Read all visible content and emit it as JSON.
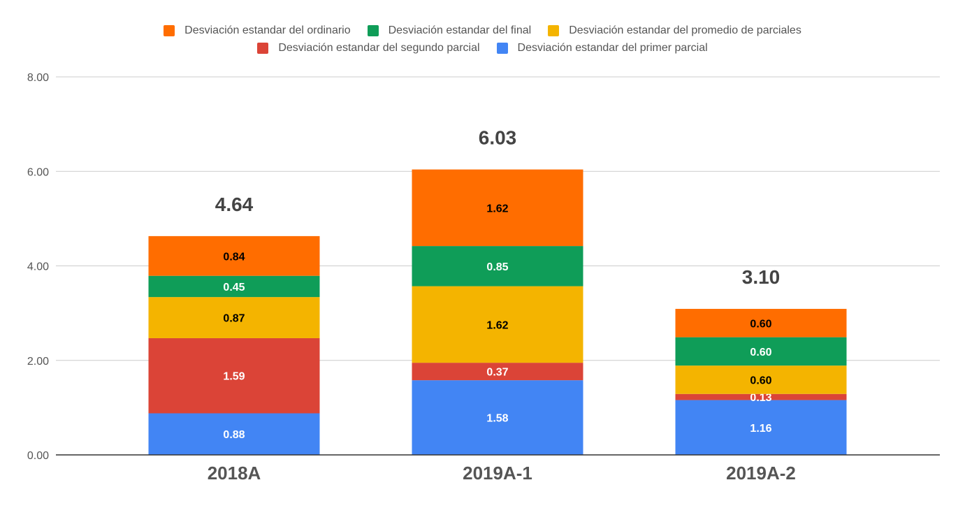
{
  "chart_data": {
    "type": "bar",
    "stacked": true,
    "categories": [
      "2018A",
      "2019A-1",
      "2019A-2"
    ],
    "ylim": [
      0,
      8
    ],
    "yticks": [
      "0.00",
      "2.00",
      "4.00",
      "6.00",
      "8.00"
    ],
    "grid": true,
    "legend_position": "top",
    "series": [
      {
        "name": "Desviación estandar del primer parcial",
        "color": "#4285f4",
        "values": [
          0.88,
          1.58,
          1.16
        ],
        "labels": [
          "0.88",
          "1.58",
          "1.16"
        ],
        "label_color": "#ffffff"
      },
      {
        "name": "Desviación estandar del segundo parcial",
        "color": "#db4437",
        "values": [
          1.59,
          0.37,
          0.13
        ],
        "labels": [
          "1.59",
          "0.37",
          "0.13"
        ],
        "label_color": "#ffffff"
      },
      {
        "name": "Desviación estandar del promedio de parciales",
        "color": "#f4b400",
        "values": [
          0.87,
          1.62,
          0.6
        ],
        "labels": [
          "0.87",
          "1.62",
          "0.60"
        ],
        "label_color": "#000000"
      },
      {
        "name": "Desviación estandar del final",
        "color": "#0f9d58",
        "values": [
          0.45,
          0.85,
          0.6
        ],
        "labels": [
          "0.45",
          "0.85",
          "0.60"
        ],
        "label_color": "#ffffff"
      },
      {
        "name": "Desviación estandar del ordinario",
        "color": "#ff6d00",
        "values": [
          0.84,
          1.62,
          0.6
        ],
        "labels": [
          "0.84",
          "1.62",
          "0.60"
        ],
        "label_color": "#000000"
      }
    ],
    "totals": [
      "4.64",
      "6.03",
      "3.10"
    ]
  },
  "legend": {
    "row1": [
      {
        "label": "Desviación estandar del ordinario",
        "color": "#ff6d00"
      },
      {
        "label": "Desviación estandar del final",
        "color": "#0f9d58"
      },
      {
        "label": "Desviación estandar del promedio de parciales",
        "color": "#f4b400"
      }
    ],
    "row2": [
      {
        "label": "Desviación estandar del segundo parcial",
        "color": "#db4437"
      },
      {
        "label": "Desviación estandar del primer parcial",
        "color": "#4285f4"
      }
    ]
  }
}
